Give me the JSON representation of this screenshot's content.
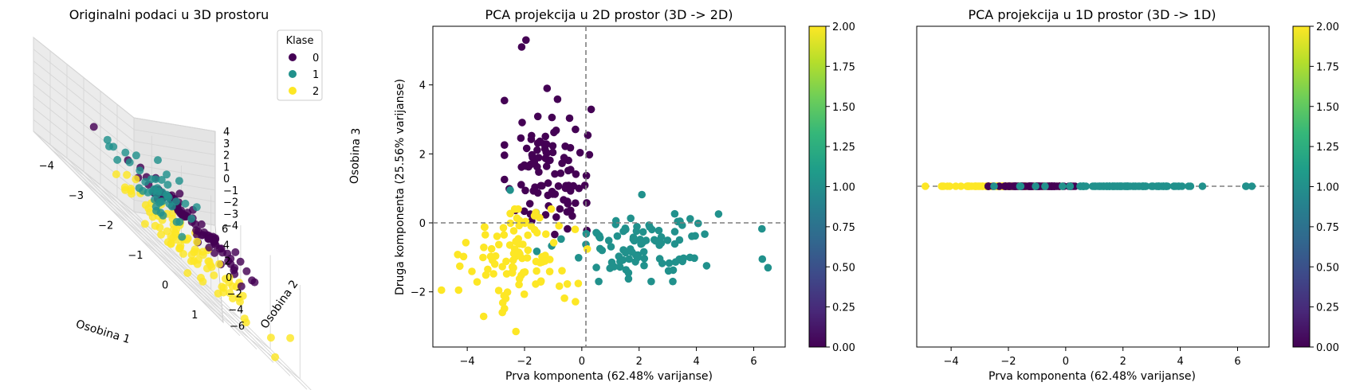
{
  "colors": {
    "class0": "#440154",
    "class1": "#21918c",
    "class2": "#fde725",
    "viridis": [
      "#440154",
      "#482878",
      "#3e4989",
      "#31688e",
      "#26828e",
      "#1f9e89",
      "#35b779",
      "#6ece58",
      "#b5de2b",
      "#fde725"
    ],
    "pane": "#f2f2f2",
    "grid": "#d6d6d6",
    "refline": "#7f7f7f"
  },
  "chart_data": [
    {
      "type": "scatter",
      "title": "Originalni podaci u 3D prostoru",
      "xlabel": "Osobina 1",
      "ylabel": "Osobina 2",
      "zlabel": "Osobina 3",
      "xticks": [
        "−4",
        "−3",
        "−2",
        "−1",
        "0",
        "1"
      ],
      "yticks": [
        "−6",
        "−4",
        "−2",
        "0",
        "2",
        "4",
        "6"
      ],
      "zticks": [
        "4",
        "3",
        "2",
        "1",
        "0",
        "−1",
        "−2",
        "−3",
        "−4"
      ],
      "xlim": [
        -4.6,
        1.8
      ],
      "ylim": [
        -6,
        6
      ],
      "zlim": [
        -4,
        4
      ],
      "legend": {
        "title": "Klase",
        "entries": [
          "0",
          "1",
          "2"
        ],
        "position": "top-right"
      },
      "grid": true
    },
    {
      "type": "scatter",
      "title": "PCA projekcija u 2D prostor (3D -> 2D)",
      "xlabel": "Prva komponenta (62.48% varijanse)",
      "ylabel": "Druga komponenta (25.56% varijanse)",
      "xticks": [
        "−4",
        "−2",
        "0",
        "2",
        "4",
        "6"
      ],
      "yticks": [
        "−2",
        "0",
        "2",
        "4"
      ],
      "xlim": [
        -5.2,
        7.1
      ],
      "ylim": [
        -3.6,
        5.7
      ],
      "reference_lines": {
        "x": 0,
        "y": 0
      },
      "colorbar": {
        "ticks": [
          "0.00",
          "0.25",
          "0.50",
          "0.75",
          "1.00",
          "1.25",
          "1.50",
          "1.75",
          "2.00"
        ],
        "range": [
          0,
          2
        ]
      },
      "grid": false
    },
    {
      "type": "scatter",
      "title": "PCA projekcija u 1D prostor (3D -> 1D)",
      "xlabel": "Prva komponenta (62.48% varijanse)",
      "xticks": [
        "−4",
        "−2",
        "0",
        "2",
        "4",
        "6"
      ],
      "xlim": [
        -5.2,
        7.1
      ],
      "reference_lines": {
        "y": 0
      },
      "colorbar": {
        "ticks": [
          "0.00",
          "0.25",
          "0.50",
          "0.75",
          "1.00",
          "1.25",
          "1.50",
          "1.75",
          "2.00"
        ],
        "range": [
          0,
          2
        ]
      },
      "grid": false
    }
  ]
}
